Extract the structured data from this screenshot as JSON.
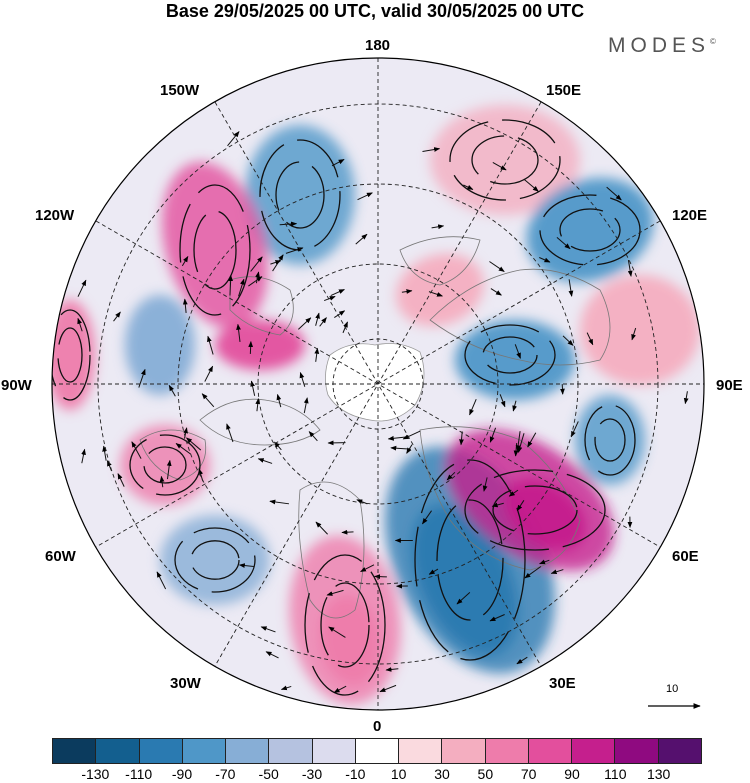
{
  "title": "Base 29/05/2025 00 UTC, valid 30/05/2025 00 UTC",
  "logo": "MODES",
  "logo_mark": "©",
  "longitude_labels": {
    "lon_180": "180",
    "lon_150w": "150W",
    "lon_150e": "150E",
    "lon_120w": "120W",
    "lon_120e": "120E",
    "lon_90w": "90W",
    "lon_90e": "90E",
    "lon_60w": "60W",
    "lon_60e": "60E",
    "lon_30w": "30W",
    "lon_30e": "30E",
    "lon_0": "0"
  },
  "vector_scale": "10",
  "colorbar": {
    "colors": [
      "#0b3b5e",
      "#135f8f",
      "#2a7ab1",
      "#4f97c8",
      "#87aed6",
      "#b5c2e0",
      "#dcdcee",
      "#ffffff",
      "#fadadf",
      "#f4aec0",
      "#ee7cab",
      "#e34f9d",
      "#c51f8d",
      "#8f0a80",
      "#55106e"
    ],
    "ticks": [
      "-130",
      "-110",
      "-90",
      "-70",
      "-50",
      "-30",
      "-10",
      "10",
      "30",
      "50",
      "70",
      "90",
      "110",
      "130"
    ]
  },
  "field_anomalies": [
    {
      "id": "ne-atlantic-high",
      "color": "#ee7cab"
    },
    {
      "id": "scandinavia-low",
      "color": "#2a7ab1"
    },
    {
      "id": "west-siberia-high",
      "color": "#c51f8d"
    },
    {
      "id": "east-asia-low",
      "color": "#4f97c8"
    },
    {
      "id": "north-pacific-high",
      "color": "#f4aec0"
    },
    {
      "id": "alaska-low",
      "color": "#4f97c8"
    },
    {
      "id": "ne-pacific-high",
      "color": "#e34f9d"
    },
    {
      "id": "canada-high",
      "color": "#ee7cab"
    },
    {
      "id": "north-atlantic-low",
      "color": "#87aed6"
    }
  ]
}
